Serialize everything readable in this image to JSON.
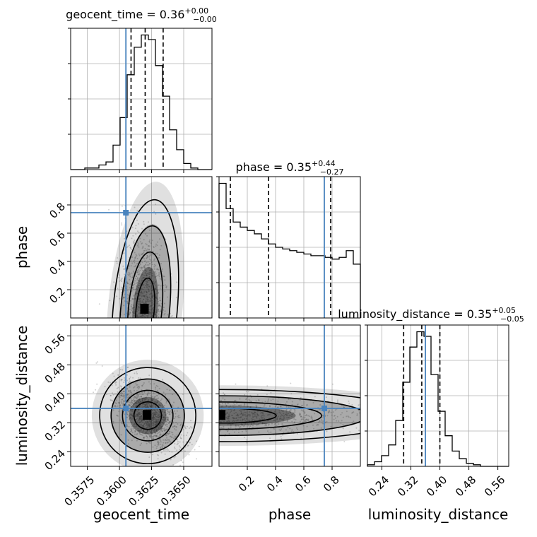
{
  "chart_data": {
    "type": "corner",
    "grid": true,
    "colors": {
      "truth": "#4a84be",
      "hist": "#000000",
      "quantile": "#000000",
      "samples": "#808080"
    },
    "parameters": [
      {
        "name": "geocent_time",
        "label": "geocent_time",
        "range": [
          0.3562,
          0.3672
        ],
        "ticks": [
          0.3575,
          0.36,
          0.3625,
          0.365
        ],
        "tick_labels": [
          "0.3575",
          "0.3600",
          "0.3625",
          "0.3650"
        ],
        "truth": 0.3605,
        "median": 0.362,
        "quantiles": [
          0.3609,
          0.362,
          0.3634
        ],
        "title_value": "0.36",
        "title_plus": "+0.00",
        "title_minus": "−0.00"
      },
      {
        "name": "phase",
        "label": "phase",
        "range": [
          0.0,
          1.0
        ],
        "ticks": [
          0.2,
          0.4,
          0.6,
          0.8
        ],
        "tick_labels": [
          "0.2",
          "0.4",
          "0.6",
          "0.8"
        ],
        "truth": 0.745,
        "median": 0.35,
        "quantiles": [
          0.08,
          0.35,
          0.79
        ],
        "title_value": "0.35",
        "title_plus": "+0.44",
        "title_minus": "−0.27"
      },
      {
        "name": "luminosity_distance",
        "label": "luminosity_distance",
        "range": [
          0.2,
          0.59
        ],
        "ticks": [
          0.24,
          0.32,
          0.4,
          0.48,
          0.56
        ],
        "tick_labels": [
          "0.24",
          "0.32",
          "0.40",
          "0.48",
          "0.56"
        ],
        "truth": 0.36,
        "median": 0.35,
        "quantiles": [
          0.3,
          0.35,
          0.4
        ],
        "title_value": "0.35",
        "title_plus": "+0.05",
        "title_minus": "−0.05"
      }
    ],
    "hist_1d": [
      [
        0,
        0,
        1,
        1,
        3,
        5,
        16,
        34,
        62,
        80,
        88,
        85,
        68,
        48,
        26,
        13,
        4,
        1,
        0,
        0
      ],
      [
        80,
        65,
        57,
        54,
        52,
        50,
        47,
        44,
        42,
        41,
        40,
        39,
        38,
        37,
        37,
        36,
        35,
        36,
        40,
        32
      ],
      [
        1,
        3,
        7,
        14,
        30,
        55,
        78,
        88,
        85,
        60,
        36,
        20,
        10,
        5,
        2,
        1,
        0,
        0,
        0,
        0
      ]
    ],
    "pairs_2d": [
      {
        "x_param": "geocent_time",
        "y_param": "phase",
        "peak": {
          "x": 0.362,
          "y": 0.06
        }
      },
      {
        "x_param": "geocent_time",
        "y_param": "luminosity_distance",
        "peak": {
          "x": 0.3622,
          "y": 0.34
        }
      },
      {
        "x_param": "phase",
        "y_param": "luminosity_distance",
        "peak": {
          "x": 0.02,
          "y": 0.34
        }
      }
    ]
  }
}
